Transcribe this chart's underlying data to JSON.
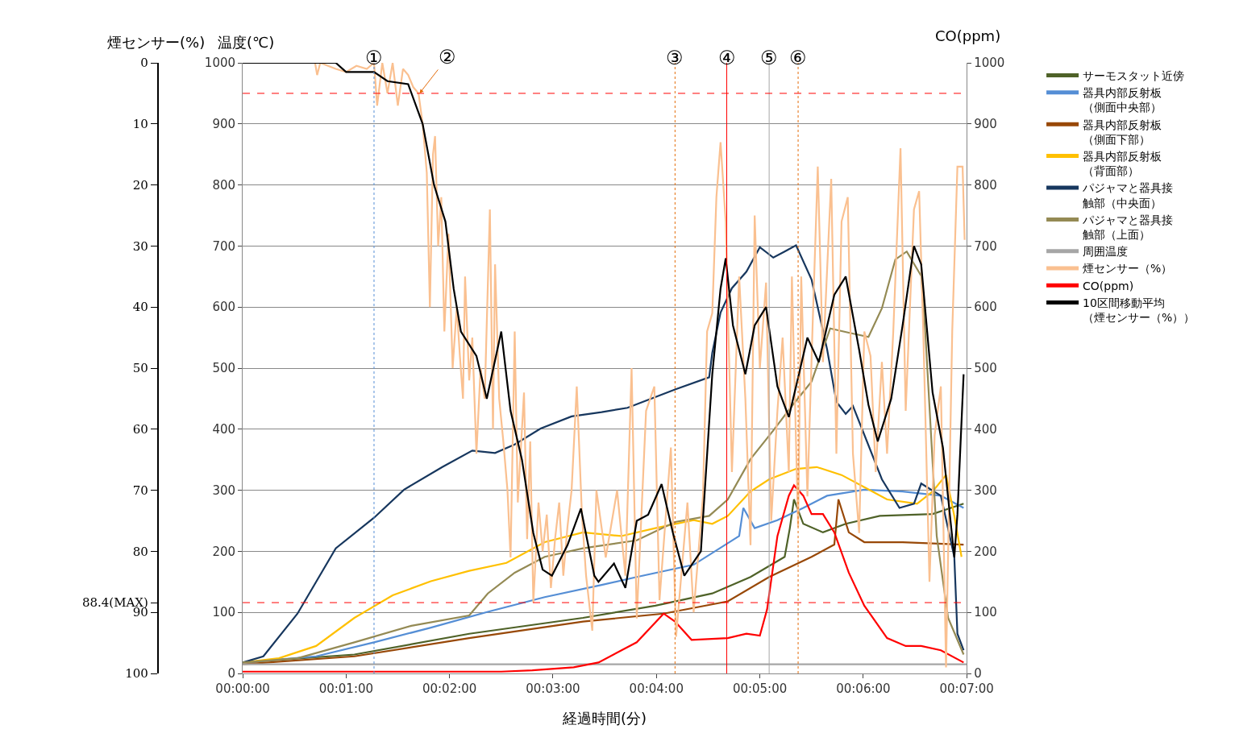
{
  "chart_data": {
    "type": "line",
    "xlabel": "経過時間(分)",
    "ylabel": "温度(℃)",
    "y2label": "CO(ppm)",
    "y3label": "煙センサー(%)",
    "xlim": [
      0,
      7
    ],
    "xticks": [
      {
        "value": 0,
        "label": "00:00:00"
      },
      {
        "value": 1,
        "label": "00:01:00"
      },
      {
        "value": 2,
        "label": "00:02:00"
      },
      {
        "value": 3,
        "label": "00:03:00"
      },
      {
        "value": 4,
        "label": "00:04:00"
      },
      {
        "value": 5,
        "label": "00:05:00"
      },
      {
        "value": 6,
        "label": "00:06:00"
      },
      {
        "value": 7,
        "label": "00:07:00"
      }
    ],
    "ylim": [
      0,
      1000
    ],
    "yticks": [
      0,
      100,
      200,
      300,
      400,
      500,
      600,
      700,
      800,
      900,
      1000
    ],
    "y2lim": [
      0,
      1000
    ],
    "y2ticks": [
      0,
      100,
      200,
      300,
      400,
      500,
      600,
      700,
      800,
      900,
      1000
    ],
    "y3lim": [
      100,
      0
    ],
    "y3ticks": [
      0,
      10,
      20,
      30,
      40,
      50,
      60,
      70,
      80,
      {
        "value": 88.4,
        "label": "88.4(MAX)"
      },
      90,
      100
    ],
    "grid": "y",
    "legend": "right",
    "marker": "none",
    "line_style": "solid",
    "series": [
      {
        "name": "サーモスタット近傍",
        "color": "#4f6228",
        "x": [
          0,
          1.08,
          2.19,
          3.29,
          3.99,
          4.54,
          4.91,
          5.24,
          5.29,
          5.33,
          5.42,
          5.61,
          5.83,
          6.16,
          6.67,
          6.97
        ],
        "values": [
          18,
          31,
          65,
          91,
          111,
          131,
          158,
          191,
          238,
          285,
          245,
          231,
          245,
          258,
          261,
          278
        ]
      },
      {
        "name": "器具内部反射板（側面中央部）",
        "color": "#558ed5",
        "x": [
          0,
          0.71,
          1.27,
          1.82,
          2.37,
          2.92,
          3.47,
          3.81,
          4.36,
          4.8,
          4.84,
          4.95,
          5.17,
          5.42,
          5.65,
          6.01,
          6.38,
          6.75,
          6.97
        ],
        "values": [
          18,
          28,
          51,
          75,
          101,
          125,
          145,
          158,
          178,
          225,
          271,
          238,
          251,
          271,
          291,
          301,
          298,
          291,
          271
        ]
      },
      {
        "name": "器具内部反射板（側面下部）",
        "color": "#984807",
        "x": [
          0,
          1.08,
          2.19,
          3.29,
          4.07,
          4.69,
          5.09,
          5.5,
          5.72,
          5.76,
          5.86,
          6.01,
          6.38,
          6.97
        ],
        "values": [
          15,
          28,
          58,
          85,
          98,
          118,
          158,
          191,
          211,
          285,
          231,
          215,
          215,
          211
        ]
      },
      {
        "name": "器具内部反射板（背面部）",
        "color": "#ffc000",
        "x": [
          0,
          0.35,
          0.71,
          1.08,
          1.45,
          1.82,
          2.19,
          2.55,
          2.92,
          3.29,
          3.66,
          3.99,
          4.36,
          4.54,
          4.69,
          4.91,
          5.09,
          5.35,
          5.55,
          5.79,
          6.01,
          6.23,
          6.52,
          6.67,
          6.8,
          6.88,
          6.95
        ],
        "values": [
          18,
          25,
          45,
          91,
          128,
          151,
          168,
          181,
          215,
          231,
          225,
          238,
          251,
          245,
          258,
          298,
          318,
          335,
          338,
          325,
          305,
          285,
          278,
          298,
          325,
          258,
          191
        ]
      },
      {
        "name": "パジャマと器具接触部（中央面）",
        "color": "#17375e",
        "x": [
          0,
          0.2,
          0.53,
          0.9,
          1.27,
          1.56,
          1.93,
          2.22,
          2.44,
          2.63,
          2.88,
          3.18,
          3.47,
          3.72,
          4.18,
          4.51,
          4.54,
          4.62,
          4.73,
          4.87,
          5.0,
          5.13,
          5.24,
          5.35,
          5.5,
          5.65,
          5.74,
          5.83,
          5.9,
          6.18,
          6.35,
          6.49,
          6.56,
          6.75,
          6.88,
          6.91,
          6.97
        ],
        "values": [
          18,
          28,
          98,
          205,
          255,
          301,
          338,
          365,
          361,
          375,
          401,
          421,
          428,
          435,
          465,
          485,
          525,
          591,
          631,
          658,
          698,
          681,
          691,
          701,
          645,
          531,
          445,
          425,
          438,
          318,
          271,
          278,
          311,
          291,
          191,
          65,
          38
        ]
      },
      {
        "name": "パジャマと器具接触部（上面）",
        "color": "#948a54",
        "x": [
          0,
          0.53,
          1.08,
          1.63,
          2.19,
          2.37,
          2.63,
          2.92,
          3.29,
          3.81,
          4.18,
          4.51,
          4.69,
          4.91,
          5.13,
          5.31,
          5.5,
          5.68,
          5.86,
          6.05,
          6.18,
          6.31,
          6.42,
          6.56,
          6.6,
          6.71,
          6.82,
          6.97
        ],
        "values": [
          18,
          25,
          51,
          78,
          95,
          131,
          165,
          191,
          205,
          218,
          248,
          258,
          285,
          351,
          398,
          438,
          478,
          565,
          558,
          551,
          598,
          678,
          691,
          651,
          558,
          225,
          91,
          31
        ]
      },
      {
        "name": "周囲温度",
        "color": "#a6a6a6",
        "x": [
          0,
          7
        ],
        "values": [
          15,
          15
        ]
      },
      {
        "name": "煙センサー（%）",
        "color": "#fac090",
        "axis": "y3",
        "x": [
          0,
          0.7,
          0.72,
          0.75,
          0.9,
          1.0,
          1.1,
          1.2,
          1.27,
          1.3,
          1.35,
          1.4,
          1.45,
          1.5,
          1.55,
          1.6,
          1.65,
          1.7,
          1.74,
          1.78,
          1.81,
          1.84,
          1.86,
          1.89,
          1.92,
          1.95,
          1.99,
          2.03,
          2.07,
          2.1,
          2.13,
          2.15,
          2.19,
          2.22,
          2.26,
          2.3,
          2.34,
          2.39,
          2.42,
          2.44,
          2.48,
          2.52,
          2.56,
          2.59,
          2.63,
          2.66,
          2.72,
          2.75,
          2.78,
          2.81,
          2.86,
          2.9,
          2.94,
          2.98,
          3.02,
          3.06,
          3.1,
          3.14,
          3.18,
          3.23,
          3.28,
          3.32,
          3.38,
          3.42,
          3.51,
          3.62,
          3.7,
          3.76,
          3.81,
          3.9,
          3.98,
          4.03,
          4.14,
          4.19,
          4.3,
          4.36,
          4.45,
          4.49,
          4.54,
          4.58,
          4.62,
          4.67,
          4.73,
          4.8,
          4.86,
          4.91,
          4.95,
          5.0,
          5.06,
          5.11,
          5.17,
          5.22,
          5.28,
          5.31,
          5.37,
          5.4,
          5.46,
          5.51,
          5.56,
          5.61,
          5.69,
          5.74,
          5.79,
          5.85,
          5.9,
          5.96,
          6.01,
          6.07,
          6.12,
          6.18,
          6.23,
          6.29,
          6.36,
          6.41,
          6.49,
          6.54,
          6.58,
          6.64,
          6.69,
          6.75,
          6.8,
          6.86,
          6.91,
          6.96,
          6.98
        ],
        "values": [
          0,
          0,
          2,
          0,
          1,
          1.5,
          0.5,
          1,
          0,
          7,
          0,
          5,
          0,
          7,
          1,
          2,
          4,
          5,
          10,
          18,
          40,
          15,
          12,
          30,
          22,
          44,
          28,
          50,
          40,
          48,
          55,
          35,
          52,
          45,
          64,
          50,
          55,
          24,
          60,
          33,
          55,
          62,
          70,
          81,
          44,
          72,
          54,
          78,
          62,
          88.4,
          72,
          80,
          74,
          86,
          78,
          72,
          84,
          76,
          70,
          53,
          74,
          84,
          93,
          70,
          81,
          70,
          84,
          50,
          91,
          57,
          53,
          88,
          63,
          94,
          72,
          90,
          71,
          44,
          41,
          22,
          13,
          26,
          67,
          35,
          55,
          79,
          25,
          50,
          36,
          75,
          57,
          45,
          67,
          35,
          76,
          35,
          71,
          43,
          17,
          49,
          19,
          64,
          26,
          22,
          64,
          77,
          44,
          48,
          67,
          49,
          64,
          44,
          14,
          57,
          24,
          21,
          44,
          85,
          61,
          53,
          99,
          44,
          17,
          17,
          29
        ]
      },
      {
        "name": "CO(ppm)",
        "color": "#ff0000",
        "axis": "y2",
        "x": [
          0,
          2.5,
          2.8,
          3.2,
          3.44,
          3.81,
          4.07,
          4.18,
          4.34,
          4.69,
          4.87,
          5.0,
          5.07,
          5.17,
          5.28,
          5.33,
          5.42,
          5.5,
          5.61,
          5.72,
          5.86,
          6.01,
          6.23,
          6.41,
          6.56,
          6.75,
          6.97
        ],
        "values": [
          3,
          3,
          5,
          10,
          18,
          51,
          98,
          85,
          55,
          58,
          65,
          62,
          105,
          225,
          291,
          308,
          291,
          261,
          261,
          231,
          165,
          111,
          58,
          45,
          45,
          38,
          18
        ]
      },
      {
        "name": "10区間移動平均（煙センサー（%））",
        "color": "#000000",
        "axis": "y3",
        "x": [
          0,
          0.9,
          1.0,
          1.27,
          1.4,
          1.6,
          1.74,
          1.85,
          1.96,
          2.04,
          2.11,
          2.26,
          2.36,
          2.5,
          2.59,
          2.7,
          2.81,
          2.9,
          2.99,
          3.14,
          3.27,
          3.4,
          3.44,
          3.59,
          3.7,
          3.81,
          3.92,
          4.05,
          4.16,
          4.27,
          4.43,
          4.54,
          4.62,
          4.67,
          4.74,
          4.86,
          4.95,
          5.06,
          5.17,
          5.28,
          5.35,
          5.46,
          5.57,
          5.72,
          5.83,
          5.96,
          6.05,
          6.14,
          6.27,
          6.38,
          6.49,
          6.56,
          6.67,
          6.77,
          6.88,
          6.91,
          6.97
        ],
        "values": [
          0,
          0,
          1.5,
          1.5,
          3,
          3.5,
          10,
          20,
          26,
          37,
          44,
          48,
          55,
          44,
          57,
          65,
          77,
          83,
          84,
          79,
          73,
          84,
          85,
          82,
          86,
          75,
          74,
          69,
          77,
          84,
          80,
          51,
          37,
          32,
          43,
          51,
          43,
          40,
          53,
          58,
          53,
          45,
          49,
          38,
          35,
          47,
          56,
          62,
          55,
          43,
          30,
          33,
          54,
          63,
          81,
          74,
          51
        ]
      }
    ],
    "ref_lines": [
      {
        "axis": "x",
        "value": 1.27,
        "label": "①",
        "color": "#558ed5",
        "line_style": "dotted"
      },
      {
        "axis": "x",
        "value": 4.18,
        "label": "③",
        "color": "#e46c0a",
        "line_style": "dotted"
      },
      {
        "axis": "x",
        "value": 4.68,
        "label": "④",
        "color": "#ff0000",
        "line_style": "solid"
      },
      {
        "axis": "x",
        "value": 5.09,
        "label": "⑤",
        "color": "#a6a6a6",
        "line_style": "solid"
      },
      {
        "axis": "x",
        "value": 5.37,
        "label": "⑥",
        "color": "#e46c0a",
        "line_style": "dotted"
      },
      {
        "axis": "y3",
        "value": 5,
        "color": "#ff0000",
        "line_style": "dashed"
      },
      {
        "axis": "y3",
        "value": 88.4,
        "color": "#ff0000",
        "line_style": "dashed"
      }
    ],
    "annotations": [
      {
        "text": "②",
        "x": 1.71,
        "y": 950
      }
    ]
  }
}
